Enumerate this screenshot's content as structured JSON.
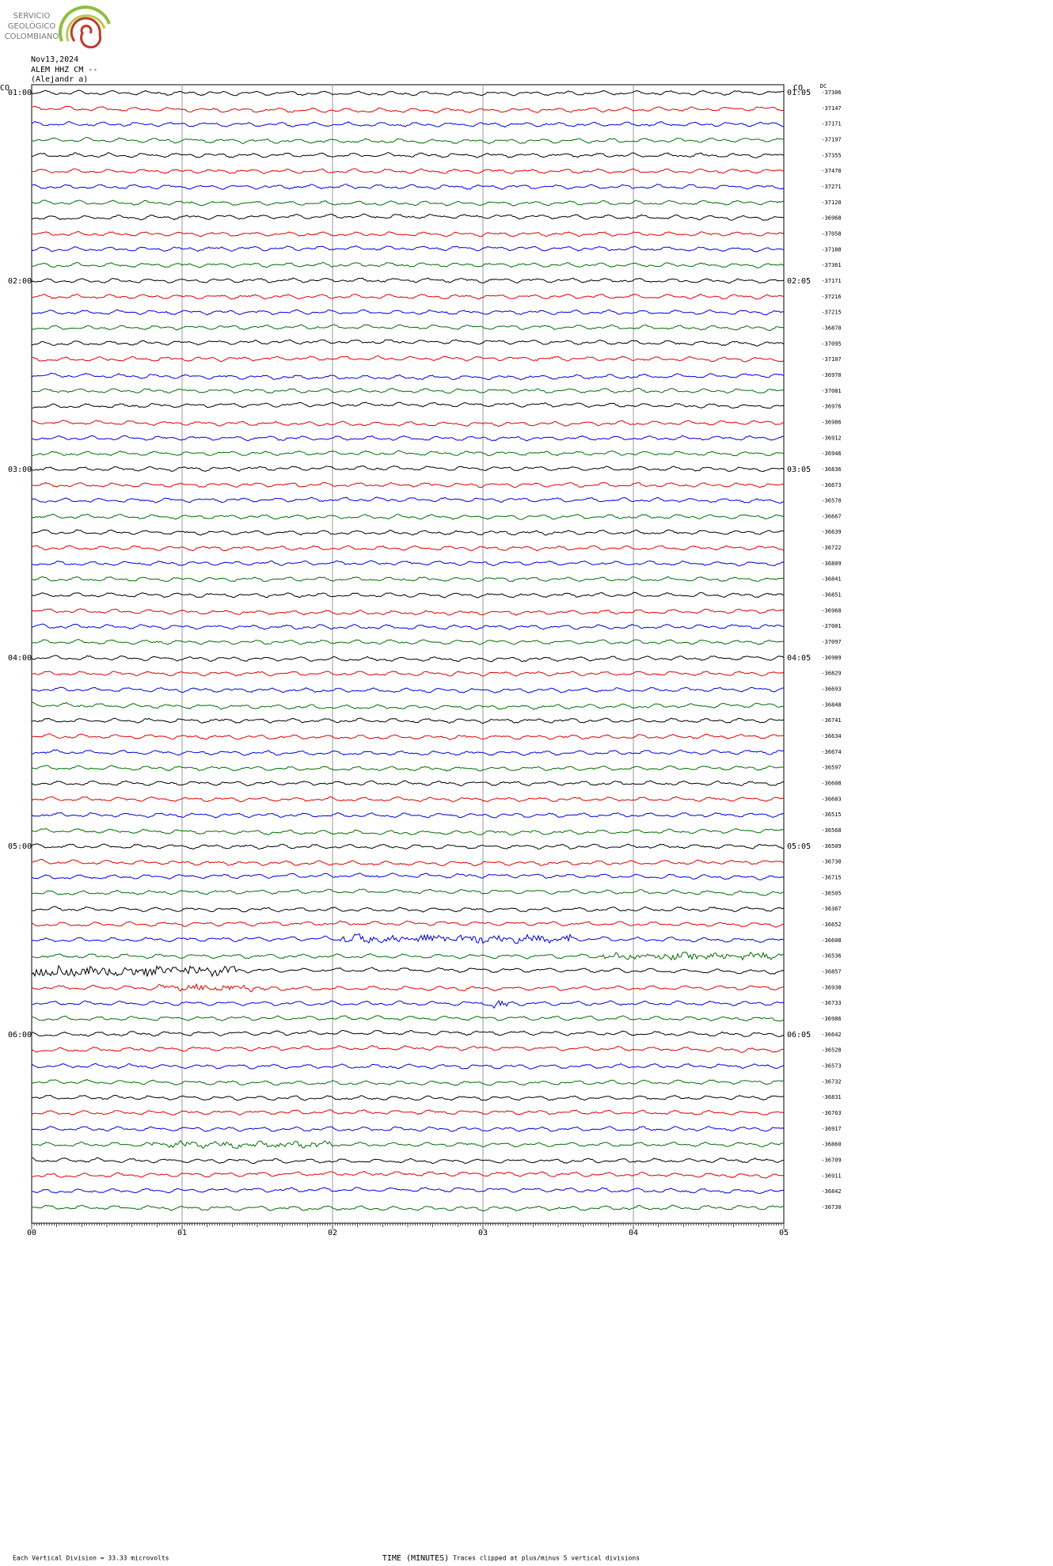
{
  "logo": {
    "lines": [
      "SERVICIO",
      "GEOLÓGICO",
      "COLOMBIANO"
    ]
  },
  "header": {
    "date": "Nov13,2024",
    "station": "ALEM HHZ CM --",
    "operator": "(Alejandr  a)"
  },
  "left_network": "CO",
  "right_network": "CO",
  "dc_label": "DC",
  "hours_left": [
    "01:00",
    "02:00",
    "03:00",
    "04:00",
    "05:00",
    "06:00"
  ],
  "hours_right": [
    "01:05",
    "02:05",
    "03:05",
    "04:05",
    "05:05",
    "06:05"
  ],
  "dc_values": [
    -37306,
    -37147,
    -37171,
    -37197,
    -37355,
    -37470,
    -37271,
    -37120,
    -36968,
    -37058,
    -37188,
    -37361,
    -37171,
    -37216,
    -37215,
    -36870,
    -37095,
    -37107,
    -36970,
    -37081,
    -36976,
    -36986,
    -36912,
    -36946,
    -36836,
    -36673,
    -36570,
    -36667,
    -36639,
    -36722,
    -36809,
    -36841,
    -36851,
    -36968,
    -37001,
    -37097,
    -36989,
    -36829,
    -36693,
    -36848,
    -36741,
    -36634,
    -36674,
    -36597,
    -36608,
    -36683,
    -36515,
    -36568,
    -36509,
    -36730,
    -36715,
    -36505,
    -36367,
    -36652,
    -36608,
    -36536,
    -36857,
    -36938,
    -36733,
    -36986,
    -36642,
    -36528,
    -36573,
    -36732,
    -36831,
    -36763,
    -36917,
    -36860,
    -36709,
    -36911,
    -36842,
    -36730
  ],
  "x_axis": {
    "ticks": [
      "00",
      "01",
      "02",
      "03",
      "04",
      "05"
    ],
    "title": "TIME (MINUTES)"
  },
  "footer": {
    "scale": "Each Vertical Division =   33.33 microvolts",
    "clip": "Traces clipped at plus/minus 5 vertical divisions"
  }
}
